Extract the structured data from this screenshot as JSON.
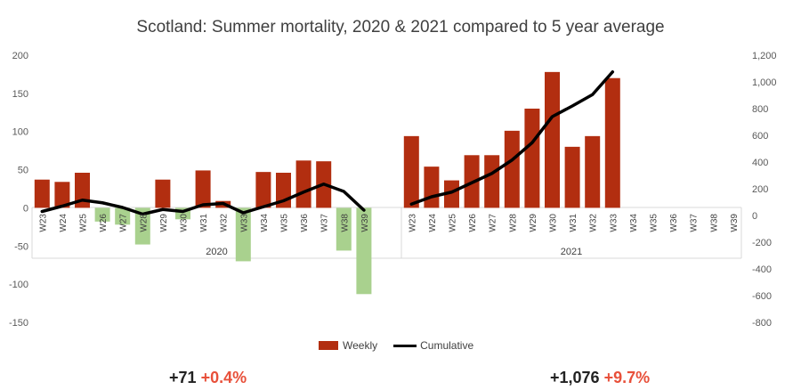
{
  "title": "Scotland: Summer mortality, 2020 & 2021 compared to 5 year average",
  "legend": {
    "weekly": "Weekly",
    "cumulative": "Cumulative"
  },
  "summary": {
    "y2020": {
      "abs": "+71",
      "pct": "+0.4%"
    },
    "y2021": {
      "abs": "+1,076",
      "pct": "+9.7%"
    }
  },
  "colors": {
    "positive": "#b22e10",
    "negative": "#a9d18e",
    "line": "#000000",
    "axis": "#d9d9d9"
  },
  "chart_data": {
    "type": "bar",
    "title": "Scotland: Summer mortality, 2020 & 2021 compared to 5 year average",
    "groups": [
      "2020",
      "2021"
    ],
    "weeks": [
      "W23",
      "W24",
      "W25",
      "W26",
      "W27",
      "W28",
      "W29",
      "W30",
      "W31",
      "W32",
      "W33",
      "W34",
      "W35",
      "W36",
      "W37",
      "W38",
      "W39"
    ],
    "left_axis": {
      "min": -150,
      "max": 200,
      "ticks": [
        "200",
        "150",
        "100",
        "50",
        "0",
        "-50",
        "-100",
        "-150"
      ]
    },
    "right_axis": {
      "min": -800,
      "max": 1200,
      "ticks": [
        "1,200",
        "1,000",
        "800",
        "600",
        "400",
        "200",
        "0",
        "-200",
        "-400",
        "-600",
        "-800"
      ]
    },
    "series": [
      {
        "name": "Weekly",
        "axis": "left",
        "y2020": [
          37,
          34,
          46,
          -18,
          -22,
          -48,
          37,
          -15,
          49,
          9,
          -70,
          47,
          46,
          62,
          61,
          -56,
          -113
        ],
        "y2021": [
          94,
          54,
          36,
          69,
          69,
          101,
          130,
          178,
          80,
          94,
          170,
          null,
          null,
          null,
          null,
          null,
          null
        ]
      },
      {
        "name": "Cumulative",
        "axis": "right",
        "y2020": [
          30,
          70,
          115,
          95,
          60,
          10,
          45,
          30,
          80,
          90,
          20,
          65,
          110,
          175,
          235,
          180,
          40
        ],
        "y2021": [
          85,
          140,
          175,
          245,
          315,
          415,
          545,
          740,
          820,
          905,
          1075,
          null,
          null,
          null,
          null,
          null,
          null
        ]
      }
    ]
  }
}
